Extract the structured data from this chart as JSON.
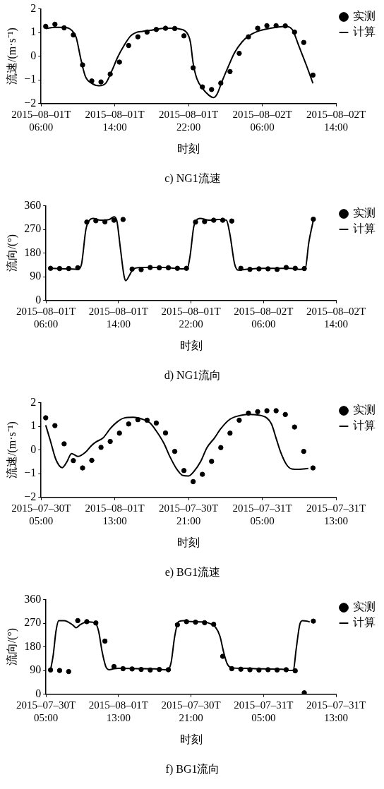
{
  "chart_data": [
    {
      "type": "scatter",
      "title": "c) NG1流速",
      "xlabel": "时刻",
      "ylabel": "流速/(m·s⁻¹)",
      "legend": "top right",
      "grid": false,
      "xlim": [
        "2015-08-01T06:00",
        "2015-08-02T14:00"
      ],
      "xticks": [
        {
          "value": "2015-08-01T06:00",
          "label": "2015–08–01T 06:00"
        },
        {
          "value": "2015-08-01T14:00",
          "label": "2015–08–01T 14:00"
        },
        {
          "value": "2015-08-01T22:00",
          "label": "2015–08–01T 22:00"
        },
        {
          "value": "2015-08-02T06:00",
          "label": "2015–08–02T 06:00"
        },
        {
          "value": "2015-08-02T14:00",
          "label": "2015–08–02T 14:00"
        }
      ],
      "ylim": [
        -2,
        2
      ],
      "yticks": [
        -2,
        -1,
        0,
        1,
        2
      ],
      "series": [
        {
          "name": "实测",
          "marker": "circle",
          "color": "#000000",
          "x": [
            "2015-08-01T06:30",
            "2015-08-01T07:30",
            "2015-08-01T08:30",
            "2015-08-01T09:30",
            "2015-08-01T10:30",
            "2015-08-01T11:30",
            "2015-08-01T12:30",
            "2015-08-01T13:30",
            "2015-08-01T14:30",
            "2015-08-01T15:30",
            "2015-08-01T16:30",
            "2015-08-01T17:30",
            "2015-08-01T18:30",
            "2015-08-01T19:30",
            "2015-08-01T20:30",
            "2015-08-01T21:30",
            "2015-08-01T22:30",
            "2015-08-01T23:30",
            "2015-08-02T00:30",
            "2015-08-02T01:30",
            "2015-08-02T02:30",
            "2015-08-02T03:30",
            "2015-08-02T04:30",
            "2015-08-02T05:30",
            "2015-08-02T06:30",
            "2015-08-02T07:30",
            "2015-08-02T08:30",
            "2015-08-02T09:30",
            "2015-08-02T10:30",
            "2015-08-02T11:30"
          ],
          "values": [
            1.26,
            1.35,
            1.2,
            0.9,
            -0.37,
            -1.05,
            -1.09,
            -0.76,
            -0.25,
            0.45,
            0.82,
            1.02,
            1.13,
            1.18,
            1.17,
            0.86,
            -0.49,
            -1.3,
            -1.41,
            -1.14,
            -0.65,
            0.12,
            0.82,
            1.18,
            1.29,
            1.29,
            1.28,
            1.02,
            0.58,
            -0.8
          ]
        },
        {
          "name": "计算",
          "type": "line",
          "marker": "none",
          "line_style": "solid",
          "color": "#000000",
          "x": [
            "2015-08-01T06:30",
            "2015-08-01T07:30",
            "2015-08-01T08:30",
            "2015-08-01T09:18",
            "2015-08-01T09:48",
            "2015-08-01T10:18",
            "2015-08-01T10:48",
            "2015-08-01T11:30",
            "2015-08-01T12:18",
            "2015-08-01T13:00",
            "2015-08-01T13:42",
            "2015-08-01T14:18",
            "2015-08-01T15:00",
            "2015-08-01T15:42",
            "2015-08-01T16:18",
            "2015-08-01T17:00",
            "2015-08-01T18:00",
            "2015-08-01T19:00",
            "2015-08-01T20:00",
            "2015-08-01T21:00",
            "2015-08-01T21:48",
            "2015-08-01T22:12",
            "2015-08-01T22:30",
            "2015-08-01T22:54",
            "2015-08-01T23:30",
            "2015-08-02T00:12",
            "2015-08-02T00:42",
            "2015-08-02T01:06",
            "2015-08-02T01:36",
            "2015-08-02T02:18",
            "2015-08-02T03:00",
            "2015-08-02T03:48",
            "2015-08-02T04:30",
            "2015-08-02T05:30",
            "2015-08-02T06:30",
            "2015-08-02T07:30",
            "2015-08-02T08:30",
            "2015-08-02T09:00",
            "2015-08-02T09:18",
            "2015-08-02T10:00",
            "2015-08-02T10:48",
            "2015-08-02T11:30"
          ],
          "values": [
            1.17,
            1.22,
            1.22,
            1.1,
            0.8,
            -0.1,
            -0.85,
            -1.15,
            -1.25,
            -1.15,
            -0.6,
            -0.05,
            0.45,
            0.85,
            1.0,
            1.05,
            1.1,
            1.17,
            1.18,
            1.15,
            1.0,
            0.6,
            -0.3,
            -0.95,
            -1.35,
            -1.65,
            -1.75,
            -1.6,
            -1.1,
            -0.45,
            0.15,
            0.6,
            0.85,
            1.05,
            1.15,
            1.22,
            1.26,
            1.22,
            1.1,
            0.4,
            -0.4,
            -1.15
          ]
        }
      ]
    },
    {
      "type": "scatter",
      "title": "d) NG1流向",
      "xlabel": "时刻",
      "ylabel": "流向/(°)",
      "legend": "top right",
      "grid": false,
      "xlim": [
        "2015-08-01T06:00",
        "2015-08-02T14:00"
      ],
      "xticks": [
        {
          "value": "2015-08-01T06:00",
          "label": "2015–08–01T 06:00"
        },
        {
          "value": "2015-08-01T14:00",
          "label": "2015–08–01T 14:00"
        },
        {
          "value": "2015-08-01T22:00",
          "label": "2015–08–01T 22:00"
        },
        {
          "value": "2015-08-02T06:00",
          "label": "2015–08–02T 06:00"
        },
        {
          "value": "2015-08-02T14:00",
          "label": "2015–08–02T 14:00"
        }
      ],
      "ylim": [
        0,
        360
      ],
      "yticks": [
        0,
        90,
        180,
        270,
        360
      ],
      "series": [
        {
          "name": "实测",
          "marker": "circle",
          "color": "#000000",
          "x": [
            "2015-08-01T06:30",
            "2015-08-01T07:30",
            "2015-08-01T08:30",
            "2015-08-01T09:30",
            "2015-08-01T10:30",
            "2015-08-01T11:30",
            "2015-08-01T12:30",
            "2015-08-01T13:30",
            "2015-08-01T14:30",
            "2015-08-01T15:30",
            "2015-08-01T16:30",
            "2015-08-01T17:30",
            "2015-08-01T18:30",
            "2015-08-01T19:30",
            "2015-08-01T20:30",
            "2015-08-01T21:30",
            "2015-08-01T22:30",
            "2015-08-01T23:30",
            "2015-08-02T00:30",
            "2015-08-02T01:30",
            "2015-08-02T02:30",
            "2015-08-02T03:30",
            "2015-08-02T04:30",
            "2015-08-02T05:30",
            "2015-08-02T06:30",
            "2015-08-02T07:30",
            "2015-08-02T08:30",
            "2015-08-02T09:30",
            "2015-08-02T10:30",
            "2015-08-02T11:30"
          ],
          "values": [
            122,
            121,
            121,
            124,
            298,
            303,
            299,
            305,
            308,
            119,
            117,
            125,
            124,
            124,
            122,
            122,
            298,
            300,
            305,
            305,
            302,
            122,
            118,
            120,
            120,
            118,
            125,
            122,
            121,
            309
          ]
        },
        {
          "name": "计算",
          "type": "line",
          "marker": "none",
          "line_style": "solid",
          "color": "#000000",
          "x": [
            "2015-08-01T06:30",
            "2015-08-01T08:30",
            "2015-08-01T09:30",
            "2015-08-01T09:54",
            "2015-08-01T10:24",
            "2015-08-01T10:48",
            "2015-08-01T11:12",
            "2015-08-01T12:00",
            "2015-08-01T13:00",
            "2015-08-01T13:30",
            "2015-08-01T13:48",
            "2015-08-01T14:12",
            "2015-08-01T14:36",
            "2015-08-01T14:48",
            "2015-08-01T15:12",
            "2015-08-01T15:36",
            "2015-08-01T16:30",
            "2015-08-01T19:00",
            "2015-08-01T21:00",
            "2015-08-01T21:36",
            "2015-08-01T21:54",
            "2015-08-01T22:18",
            "2015-08-01T22:36",
            "2015-08-01T23:00",
            "2015-08-02T00:00",
            "2015-08-02T01:00",
            "2015-08-02T01:54",
            "2015-08-02T02:18",
            "2015-08-02T02:48",
            "2015-08-02T03:12",
            "2015-08-02T04:00",
            "2015-08-02T06:00",
            "2015-08-02T09:00",
            "2015-08-02T10:00",
            "2015-08-02T10:36",
            "2015-08-02T11:00",
            "2015-08-02T11:30"
          ],
          "values": [
            122,
            120,
            118,
            135,
            270,
            305,
            312,
            305,
            308,
            318,
            305,
            200,
            95,
            75,
            95,
            118,
            125,
            125,
            120,
            122,
            170,
            280,
            305,
            312,
            305,
            308,
            305,
            250,
            140,
            115,
            118,
            122,
            122,
            118,
            120,
            220,
            305
          ]
        }
      ]
    },
    {
      "type": "scatter",
      "title": "e) BG1流速",
      "xlabel": "时刻",
      "ylabel": "流速/(m·s⁻¹)",
      "legend": "top right",
      "grid": false,
      "xlim": [
        "2015-07-30T05:00",
        "2015-07-31T13:00"
      ],
      "xticks": [
        {
          "value": "2015-07-30T05:00",
          "label": "2015–07–30T 05:00"
        },
        {
          "value": "2015-07-30T13:00",
          "label": "2015–08–01T 13:00"
        },
        {
          "value": "2015-07-30T21:00",
          "label": "2015–07–30T 21:00"
        },
        {
          "value": "2015-07-31T05:00",
          "label": "2015–07–31T 05:00"
        },
        {
          "value": "2015-07-31T13:00",
          "label": "2015–07–31T 13:00"
        }
      ],
      "ylim": [
        -2,
        2
      ],
      "yticks": [
        -2,
        -1,
        0,
        1,
        2
      ],
      "series": [
        {
          "name": "实测",
          "marker": "circle",
          "color": "#000000",
          "x": [
            "2015-07-30T05:30",
            "2015-07-30T06:30",
            "2015-07-30T07:30",
            "2015-07-30T08:30",
            "2015-07-30T09:30",
            "2015-07-30T10:30",
            "2015-07-30T11:30",
            "2015-07-30T12:30",
            "2015-07-30T13:30",
            "2015-07-30T14:30",
            "2015-07-30T15:30",
            "2015-07-30T16:30",
            "2015-07-30T17:30",
            "2015-07-30T18:30",
            "2015-07-30T19:30",
            "2015-07-30T20:30",
            "2015-07-30T21:30",
            "2015-07-30T22:30",
            "2015-07-30T23:30",
            "2015-07-31T00:30",
            "2015-07-31T01:30",
            "2015-07-31T02:30",
            "2015-07-31T03:30",
            "2015-07-31T04:30",
            "2015-07-31T05:30",
            "2015-07-31T06:30",
            "2015-07-31T07:30",
            "2015-07-31T08:30",
            "2015-07-31T09:30",
            "2015-07-31T10:30"
          ],
          "values": [
            1.36,
            1.03,
            0.26,
            -0.45,
            -0.76,
            -0.44,
            0.11,
            0.36,
            0.71,
            1.1,
            1.28,
            1.26,
            1.14,
            0.72,
            -0.06,
            -0.87,
            -1.34,
            -1.03,
            -0.48,
            0.1,
            0.71,
            1.26,
            1.56,
            1.62,
            1.66,
            1.66,
            1.5,
            0.97,
            -0.06,
            -0.76
          ]
        },
        {
          "name": "计算",
          "type": "line",
          "marker": "none",
          "line_style": "solid",
          "color": "#000000",
          "x": [
            "2015-07-30T05:30",
            "2015-07-30T06:00",
            "2015-07-30T06:36",
            "2015-07-30T07:18",
            "2015-07-30T07:48",
            "2015-07-30T08:18",
            "2015-07-30T09:00",
            "2015-07-30T09:48",
            "2015-07-30T10:30",
            "2015-07-30T11:00",
            "2015-07-30T11:42",
            "2015-07-30T12:30",
            "2015-07-30T13:18",
            "2015-07-30T14:00",
            "2015-07-30T15:00",
            "2015-07-30T16:00",
            "2015-07-30T16:48",
            "2015-07-30T17:30",
            "2015-07-30T18:18",
            "2015-07-30T19:00",
            "2015-07-30T19:42",
            "2015-07-30T20:24",
            "2015-07-30T21:00",
            "2015-07-30T21:36",
            "2015-07-30T22:18",
            "2015-07-30T23:00",
            "2015-07-30T23:48",
            "2015-07-31T00:30",
            "2015-07-31T01:30",
            "2015-07-31T02:30",
            "2015-07-31T03:30",
            "2015-07-31T04:30",
            "2015-07-31T05:30",
            "2015-07-31T06:00",
            "2015-07-31T06:30",
            "2015-07-31T07:00",
            "2015-07-31T07:36",
            "2015-07-31T08:12",
            "2015-07-31T09:00",
            "2015-07-31T10:00"
          ],
          "values": [
            1.05,
            0.4,
            -0.4,
            -0.75,
            -0.5,
            -0.15,
            -0.27,
            -0.1,
            0.2,
            0.35,
            0.5,
            0.9,
            1.2,
            1.35,
            1.38,
            1.3,
            1.15,
            0.8,
            0.3,
            -0.3,
            -0.8,
            -1.08,
            -1.1,
            -0.9,
            -0.5,
            0.1,
            0.5,
            0.9,
            1.3,
            1.45,
            1.5,
            1.48,
            1.35,
            1.1,
            0.5,
            -0.1,
            -0.6,
            -0.8,
            -0.82,
            -0.78
          ]
        }
      ]
    },
    {
      "type": "scatter",
      "title": "f) BG1流向",
      "xlabel": "时刻",
      "ylabel": "流向/(°)",
      "legend": "top right",
      "grid": false,
      "xlim": [
        "2015-07-30T05:00",
        "2015-07-31T13:00"
      ],
      "xticks": [
        {
          "value": "2015-07-30T05:00",
          "label": "2015–07–30T 05:00"
        },
        {
          "value": "2015-07-30T13:00",
          "label": "2015–08–01T 13:00"
        },
        {
          "value": "2015-07-30T21:00",
          "label": "2015–07–30T 21:00"
        },
        {
          "value": "2015-07-31T05:00",
          "label": "2015–07–31T 05:00"
        },
        {
          "value": "2015-07-31T13:00",
          "label": "2015–07–31T 13:00"
        }
      ],
      "ylim": [
        0,
        360
      ],
      "yticks": [
        0,
        90,
        180,
        270,
        360
      ],
      "series": [
        {
          "name": "实测",
          "marker": "circle",
          "color": "#000000",
          "x": [
            "2015-07-30T05:30",
            "2015-07-30T06:30",
            "2015-07-30T07:30",
            "2015-07-30T08:30",
            "2015-07-30T09:30",
            "2015-07-30T10:30",
            "2015-07-30T11:30",
            "2015-07-30T12:30",
            "2015-07-30T13:30",
            "2015-07-30T14:30",
            "2015-07-30T15:30",
            "2015-07-30T16:30",
            "2015-07-30T17:30",
            "2015-07-30T18:30",
            "2015-07-30T19:30",
            "2015-07-30T20:30",
            "2015-07-30T21:30",
            "2015-07-30T22:30",
            "2015-07-30T23:30",
            "2015-07-31T00:30",
            "2015-07-31T01:30",
            "2015-07-31T02:30",
            "2015-07-31T03:30",
            "2015-07-31T04:30",
            "2015-07-31T05:30",
            "2015-07-31T06:30",
            "2015-07-31T07:30",
            "2015-07-31T08:30",
            "2015-07-31T09:30",
            "2015-07-31T10:30"
          ],
          "values": [
            92,
            90,
            86,
            280,
            276,
            271,
            202,
            105,
            97,
            96,
            94,
            92,
            94,
            93,
            264,
            276,
            274,
            272,
            266,
            144,
            97,
            95,
            93,
            92,
            93,
            92,
            93,
            89,
            5,
            278
          ]
        },
        {
          "name": "计算",
          "type": "line",
          "marker": "none",
          "line_style": "solid",
          "color": "#000000",
          "x": [
            "2015-07-30T05:30",
            "2015-07-30T05:48",
            "2015-07-30T06:06",
            "2015-07-30T06:24",
            "2015-07-30T07:00",
            "2015-07-30T08:00",
            "2015-07-30T08:18",
            "2015-07-30T08:48",
            "2015-07-30T09:30",
            "2015-07-30T10:24",
            "2015-07-30T10:48",
            "2015-07-30T11:12",
            "2015-07-30T11:36",
            "2015-07-30T12:00",
            "2015-07-30T12:30",
            "2015-07-30T13:00",
            "2015-07-30T15:00",
            "2015-07-30T17:00",
            "2015-07-30T18:24",
            "2015-07-30T18:48",
            "2015-07-30T19:12",
            "2015-07-30T19:36",
            "2015-07-30T20:12",
            "2015-07-30T21:00",
            "2015-07-30T22:00",
            "2015-07-30T23:00",
            "2015-07-30T23:42",
            "2015-07-31T00:12",
            "2015-07-31T00:36",
            "2015-07-31T01:00",
            "2015-07-31T01:30",
            "2015-07-31T03:00",
            "2015-07-31T05:00",
            "2015-07-31T07:00",
            "2015-07-31T08:00",
            "2015-07-31T08:18",
            "2015-07-31T08:36",
            "2015-07-31T09:00",
            "2015-07-31T09:18",
            "2015-07-31T09:48",
            "2015-07-31T10:06"
          ],
          "values": [
            92,
            150,
            240,
            280,
            280,
            262,
            253,
            265,
            275,
            272,
            240,
            160,
            105,
            93,
            97,
            98,
            97,
            96,
            92,
            120,
            220,
            275,
            280,
            276,
            275,
            270,
            255,
            220,
            160,
            115,
            100,
            98,
            96,
            95,
            90,
            92,
            170,
            265,
            280,
            278,
            275
          ]
        }
      ]
    }
  ]
}
